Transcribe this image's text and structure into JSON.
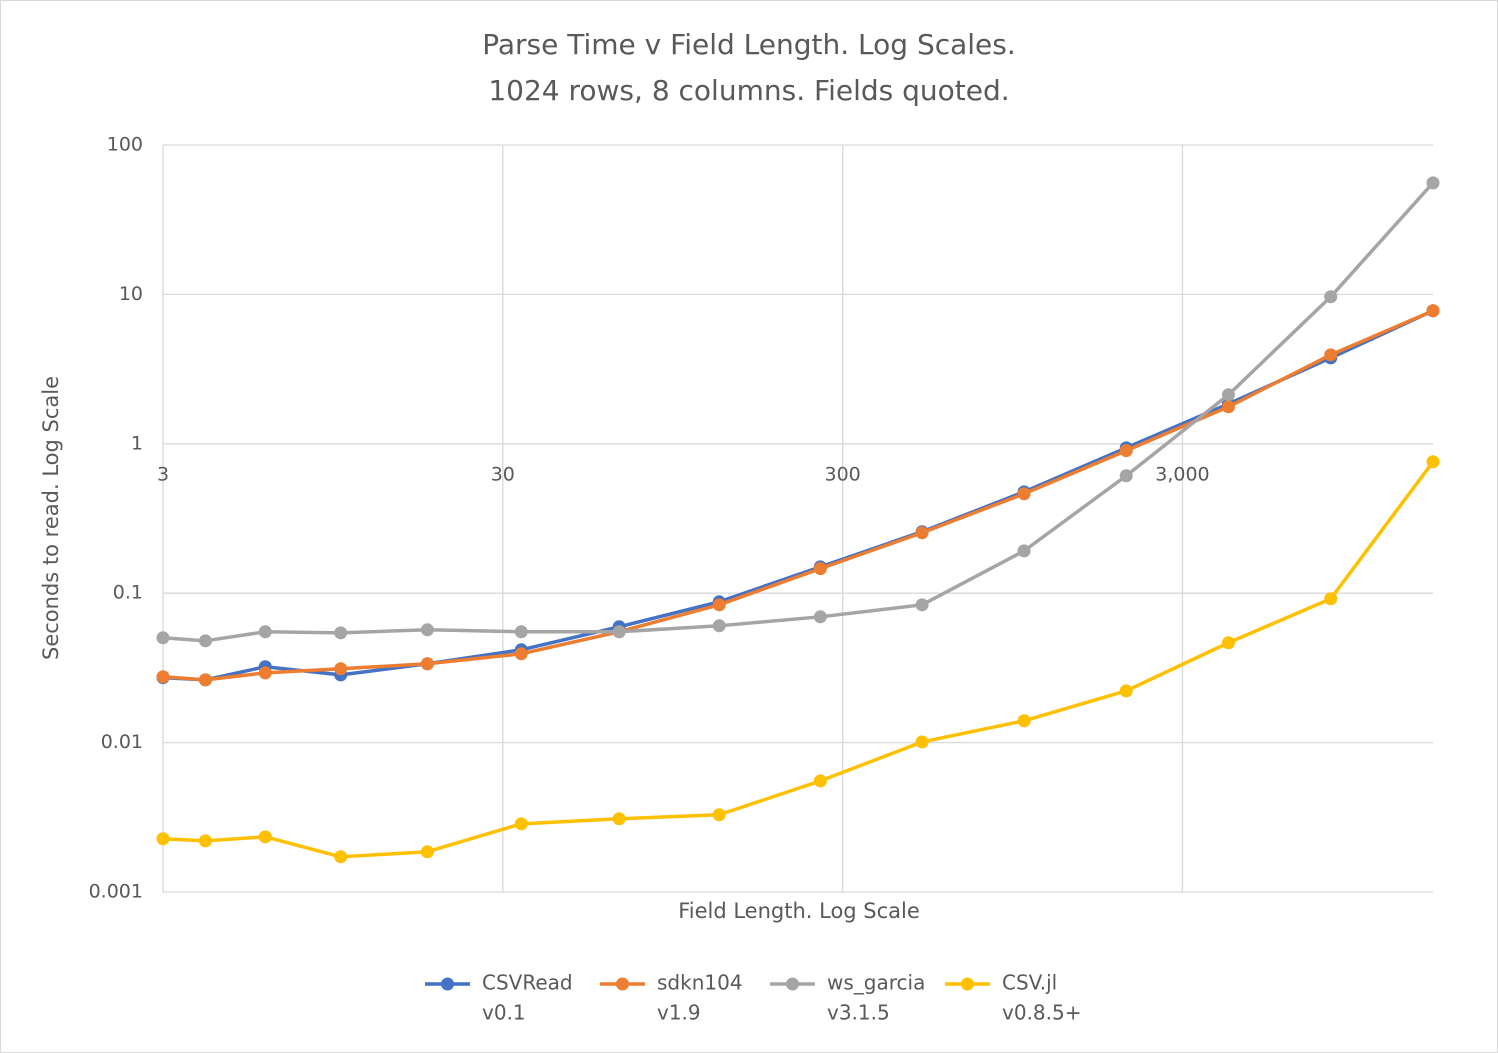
{
  "chart_data": {
    "type": "line",
    "title": "Parse Time v Field Length. Log Scales.",
    "subtitle": "1024 rows, 8 columns. Fields quoted.",
    "x_label": "Field Length. Log Scale",
    "y_label": "Seconds to read. Log Scale",
    "x": [
      3,
      4,
      6,
      10,
      18,
      34,
      66,
      130,
      258,
      514,
      1026,
      2050,
      4098,
      8194,
      16386
    ],
    "xlim": [
      3,
      16386
    ],
    "xticks": [
      3,
      30,
      300,
      {
        "value": 3000,
        "label": "3,000"
      }
    ],
    "ylim": [
      0.001,
      100
    ],
    "yticks": [
      0.001,
      0.01,
      0.1,
      1,
      10,
      100
    ],
    "x_log": true,
    "y_log": true,
    "grid": true,
    "x_axis_at": 1,
    "legend": "bottom",
    "series": [
      {
        "name": "CSVRead",
        "version": "v0.1",
        "color": "#4472c4",
        "values": [
          0.0272,
          0.0263,
          0.0322,
          0.0284,
          0.0337,
          0.0418,
          0.0596,
          0.0876,
          0.15,
          0.258,
          0.477,
          0.94,
          1.85,
          3.76,
          7.77
        ]
      },
      {
        "name": "sdkn104",
        "version": "v1.9",
        "color": "#ed7d31",
        "values": [
          0.0276,
          0.0263,
          0.0293,
          0.0312,
          0.0337,
          0.0393,
          0.0552,
          0.0836,
          0.146,
          0.254,
          0.463,
          0.9,
          1.77,
          3.94,
          7.77
        ]
      },
      {
        "name": "ws_garcia",
        "version": "v3.1.5",
        "color": "#a5a5a5",
        "values": [
          0.0503,
          0.048,
          0.0552,
          0.0543,
          0.0569,
          0.0552,
          0.0552,
          0.0605,
          0.0695,
          0.0836,
          0.192,
          0.611,
          2.13,
          9.64,
          55.8
        ]
      },
      {
        "name": "CSV.jl",
        "version": "v0.8.5+",
        "color": "#ffc000",
        "values": [
          0.00227,
          0.0022,
          0.00234,
          0.00172,
          0.00186,
          0.00286,
          0.00309,
          0.00329,
          0.00554,
          0.0101,
          0.014,
          0.0222,
          0.0466,
          0.0918,
          0.758
        ]
      }
    ]
  }
}
